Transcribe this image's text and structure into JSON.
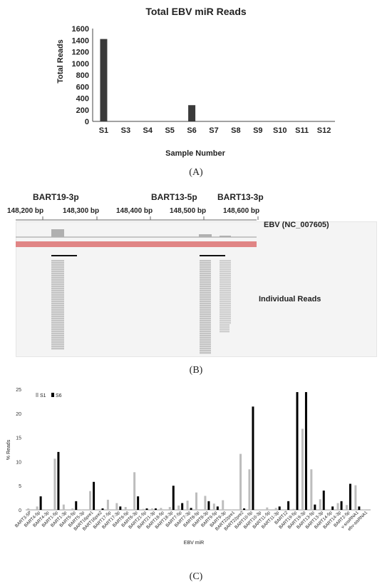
{
  "panel_labels": {
    "a": "(A)",
    "b": "(B)",
    "c": "(C)"
  },
  "chart_data": [
    {
      "type": "bar",
      "title": "Total EBV miR Reads",
      "xlabel": "Sample Number",
      "ylabel": "Total Reads",
      "ylim": [
        0,
        1600
      ],
      "yticks": [
        0,
        200,
        400,
        600,
        800,
        1000,
        1200,
        1400,
        1600
      ],
      "categories": [
        "S1",
        "S3",
        "S4",
        "S5",
        "S6",
        "S7",
        "S8",
        "S9",
        "S10",
        "S11",
        "S12"
      ],
      "values": [
        1420,
        0,
        0,
        0,
        280,
        0,
        0,
        0,
        0,
        0,
        0
      ],
      "bar_color": "#3a3a3a",
      "grid": false
    },
    {
      "type": "bar",
      "xlabel": "EBV miR",
      "ylabel": "% Reads",
      "ylim": [
        0,
        25
      ],
      "yticks": [
        0,
        5,
        10,
        15,
        20,
        25
      ],
      "legend_position": "top-left",
      "grid": false,
      "categories": [
        "BART3-5P",
        "BART4-5p",
        "BART4-3p",
        "BART1-5p",
        "BART1-3p",
        "BART5-5p",
        "BART5-3p",
        "BART16pre1",
        "BART16pre2",
        "BART17-5p",
        "BART17-3p",
        "BART6-5p",
        "BART6-3p",
        "BART21-5p",
        "BART21-3p",
        "BART18-5p",
        "BART18-3p",
        "BART7-5p",
        "BART7-3p",
        "BART8-5p",
        "BART8-3p",
        "BART9-5p",
        "BART9-3p",
        "BART22pre1",
        "BART22pre2",
        "BART10-5p",
        "BART10-3p",
        "BART11-5p",
        "BART11-3p",
        "BART12",
        "BART19-5p",
        "BART19-3p",
        "BART13-5p",
        "BART13-3p",
        "BART14-5p",
        "BART14-3p",
        "BART2-5p",
        "v-snoRNA1",
        "ebv-sisRNA1"
      ],
      "series": [
        {
          "name": "S1",
          "color": "#bdbdbd",
          "values": [
            0.3,
            0.7,
            0.1,
            10.6,
            1.1,
            0.3,
            0.1,
            3.9,
            0.1,
            2.1,
            1.4,
            0.6,
            7.8,
            0.2,
            0.3,
            0.4,
            0.6,
            0.9,
            1.9,
            3.6,
            2.9,
            1.3,
            2.0,
            0.1,
            11.6,
            8.4,
            0.1,
            0.5,
            0.4,
            0.1,
            0.2,
            16.8,
            8.4,
            2.2,
            0.1,
            1.4,
            1.0,
            5.1,
            0.1
          ]
        },
        {
          "name": "S6",
          "color": "#000000",
          "values": [
            0,
            2.8,
            0,
            12.0,
            0,
            1.8,
            0,
            5.8,
            0.3,
            0,
            0.7,
            0,
            2.8,
            0.3,
            0.3,
            0,
            5.0,
            1.4,
            0.4,
            0,
            1.8,
            0.7,
            0,
            0,
            0.3,
            21.4,
            0,
            0,
            0.7,
            1.8,
            24.4,
            24.4,
            1.1,
            4.0,
            0.7,
            1.8,
            5.4,
            0.7,
            0
          ]
        }
      ]
    }
  ],
  "igv": {
    "labels": {
      "bart19": "BART19-3p",
      "bart13_5p": "BART13-5p",
      "bart13_3p": "BART13-3p"
    },
    "ruler": [
      "148,200 bp",
      "148,300 bp",
      "148,400 bp",
      "148,500 bp",
      "148,600 bp"
    ],
    "track_label": "EBV (NC_007605)",
    "reads_label": "Individual Reads",
    "gene_color": "#e08585"
  }
}
